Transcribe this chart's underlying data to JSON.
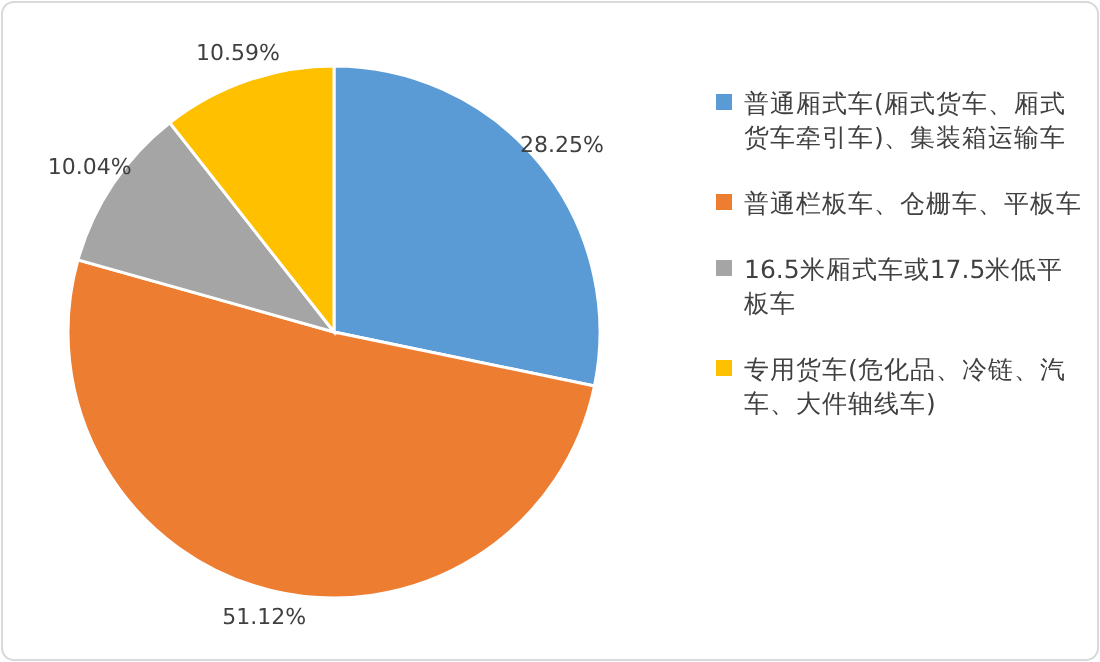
{
  "chart_data": {
    "type": "pie",
    "categories": [
      "普通厢式车(厢式货车、厢式货车牵引车)、集装箱运输车",
      "普通栏板车、仓栅车、平板车",
      "16.5米厢式车或17.5米低平板车",
      "专用货车(危化品、冷链、汽车、大件轴线车)"
    ],
    "values": [
      28.25,
      51.12,
      10.04,
      10.59
    ],
    "colors": [
      "#5b9bd5",
      "#ed7d31",
      "#a5a5a5",
      "#ffc000"
    ],
    "value_labels": [
      "28.25%",
      "51.12%",
      "10.04%",
      "10.59%"
    ],
    "legend": "right"
  }
}
